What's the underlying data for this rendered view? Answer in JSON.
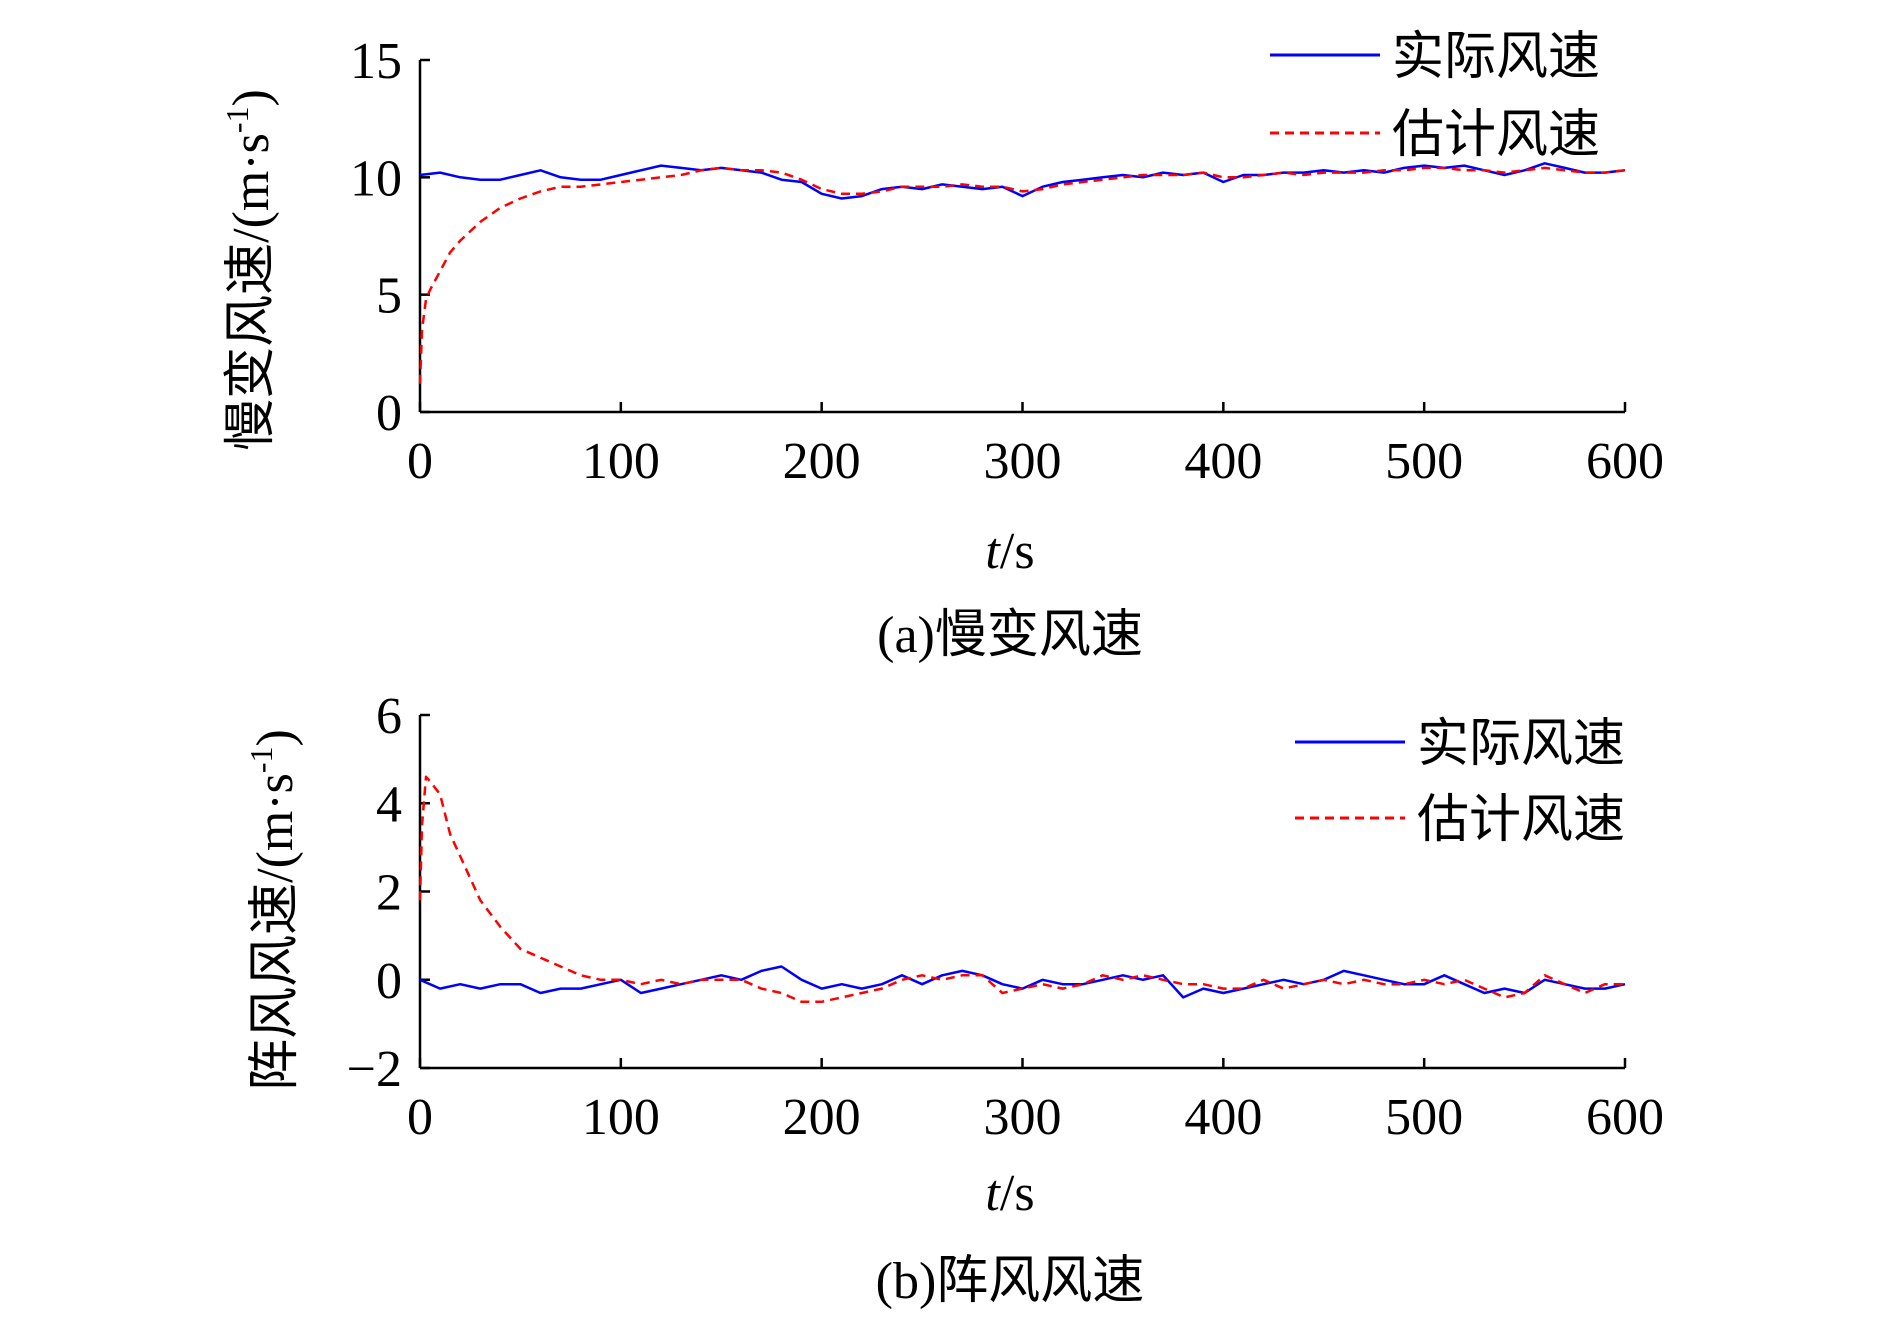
{
  "colors": {
    "actual": "#0000ff",
    "estimated": "#ff0000",
    "axis": "#000000"
  },
  "chart_data": [
    {
      "type": "line",
      "caption": "(a)慢变风速",
      "ylabel_main": "慢变风速/(m·s",
      "ylabel_sup": "-1",
      "ylabel_close": ")",
      "xlabel_italic": "t",
      "xlabel_rest": "/s",
      "xlim": [
        0,
        600
      ],
      "ylim": [
        0,
        15
      ],
      "xticks": [
        0,
        100,
        200,
        300,
        400,
        500,
        600
      ],
      "yticks": [
        0,
        5,
        10,
        15
      ],
      "xtick_labels": [
        "0",
        "100",
        "200",
        "300",
        "400",
        "500",
        "600"
      ],
      "ytick_labels": [
        "0",
        "5",
        "10",
        "15"
      ],
      "legend_position": "top-right",
      "series": [
        {
          "name": "实际风速",
          "style": "solid",
          "x": [
            0,
            10,
            20,
            30,
            40,
            50,
            60,
            70,
            80,
            90,
            100,
            110,
            120,
            130,
            140,
            150,
            160,
            170,
            180,
            190,
            200,
            210,
            220,
            230,
            240,
            250,
            260,
            270,
            280,
            290,
            300,
            310,
            320,
            330,
            340,
            350,
            360,
            370,
            380,
            390,
            400,
            410,
            420,
            430,
            440,
            450,
            460,
            470,
            480,
            490,
            500,
            510,
            520,
            530,
            540,
            550,
            560,
            570,
            580,
            590,
            600
          ],
          "y": [
            10.1,
            10.2,
            10.0,
            9.9,
            9.9,
            10.1,
            10.3,
            10.0,
            9.9,
            9.9,
            10.1,
            10.3,
            10.5,
            10.4,
            10.3,
            10.4,
            10.3,
            10.2,
            9.9,
            9.8,
            9.3,
            9.1,
            9.2,
            9.5,
            9.6,
            9.5,
            9.7,
            9.6,
            9.5,
            9.6,
            9.2,
            9.6,
            9.8,
            9.9,
            10.0,
            10.1,
            10.0,
            10.2,
            10.1,
            10.2,
            9.8,
            10.1,
            10.1,
            10.2,
            10.2,
            10.3,
            10.2,
            10.3,
            10.2,
            10.4,
            10.5,
            10.4,
            10.5,
            10.3,
            10.1,
            10.3,
            10.6,
            10.4,
            10.2,
            10.2,
            10.3
          ]
        },
        {
          "name": "估计风速",
          "style": "dashed",
          "x": [
            0,
            1,
            3,
            5,
            10,
            15,
            20,
            30,
            40,
            50,
            60,
            70,
            80,
            90,
            100,
            110,
            120,
            130,
            140,
            150,
            160,
            170,
            180,
            190,
            200,
            210,
            220,
            230,
            240,
            250,
            260,
            270,
            280,
            290,
            300,
            310,
            320,
            330,
            340,
            350,
            360,
            370,
            380,
            390,
            400,
            410,
            420,
            430,
            440,
            450,
            460,
            470,
            480,
            490,
            500,
            510,
            520,
            530,
            540,
            550,
            560,
            570,
            580,
            590,
            600
          ],
          "y": [
            1.2,
            3.5,
            4.8,
            5.2,
            6.0,
            6.8,
            7.3,
            8.1,
            8.7,
            9.1,
            9.4,
            9.6,
            9.6,
            9.7,
            9.8,
            9.9,
            10.0,
            10.1,
            10.3,
            10.4,
            10.3,
            10.3,
            10.2,
            9.9,
            9.5,
            9.3,
            9.3,
            9.4,
            9.6,
            9.6,
            9.6,
            9.7,
            9.6,
            9.6,
            9.4,
            9.5,
            9.7,
            9.8,
            9.9,
            10.0,
            10.1,
            10.1,
            10.1,
            10.2,
            10.0,
            10.0,
            10.1,
            10.2,
            10.1,
            10.2,
            10.2,
            10.2,
            10.3,
            10.3,
            10.4,
            10.4,
            10.3,
            10.3,
            10.2,
            10.3,
            10.4,
            10.3,
            10.2,
            10.2,
            10.3
          ]
        }
      ]
    },
    {
      "type": "line",
      "caption": "(b)阵风风速",
      "ylabel_main": "阵风风速/(m·s",
      "ylabel_sup": "-1",
      "ylabel_close": ")",
      "xlabel_italic": "t",
      "xlabel_rest": "/s",
      "xlim": [
        0,
        600
      ],
      "ylim": [
        -2,
        6
      ],
      "xticks": [
        0,
        100,
        200,
        300,
        400,
        500,
        600
      ],
      "yticks": [
        -2,
        0,
        2,
        4,
        6
      ],
      "xtick_labels": [
        "0",
        "100",
        "200",
        "300",
        "400",
        "500",
        "600"
      ],
      "ytick_labels": [
        "−2",
        "0",
        "2",
        "4",
        "6"
      ],
      "legend_position": "top-right",
      "series": [
        {
          "name": "实际风速",
          "style": "solid",
          "x": [
            0,
            10,
            20,
            30,
            40,
            50,
            60,
            70,
            80,
            90,
            100,
            110,
            120,
            130,
            140,
            150,
            160,
            170,
            180,
            190,
            200,
            210,
            220,
            230,
            240,
            250,
            260,
            270,
            280,
            290,
            300,
            310,
            320,
            330,
            340,
            350,
            360,
            370,
            380,
            390,
            400,
            410,
            420,
            430,
            440,
            450,
            460,
            470,
            480,
            490,
            500,
            510,
            520,
            530,
            540,
            550,
            560,
            570,
            580,
            590,
            600
          ],
          "y": [
            0.0,
            -0.2,
            -0.1,
            -0.2,
            -0.1,
            -0.1,
            -0.3,
            -0.2,
            -0.2,
            -0.1,
            0.0,
            -0.3,
            -0.2,
            -0.1,
            0.0,
            0.1,
            0.0,
            0.2,
            0.3,
            0.0,
            -0.2,
            -0.1,
            -0.2,
            -0.1,
            0.1,
            -0.1,
            0.1,
            0.2,
            0.1,
            -0.1,
            -0.2,
            0.0,
            -0.1,
            -0.1,
            0.0,
            0.1,
            0.0,
            0.1,
            -0.4,
            -0.2,
            -0.3,
            -0.2,
            -0.1,
            0.0,
            -0.1,
            0.0,
            0.2,
            0.1,
            0.0,
            -0.1,
            -0.1,
            0.1,
            -0.1,
            -0.3,
            -0.2,
            -0.3,
            0.0,
            -0.1,
            -0.2,
            -0.2,
            -0.1
          ]
        },
        {
          "name": "估计风速",
          "style": "dashed",
          "x": [
            0,
            1,
            3,
            5,
            10,
            15,
            20,
            30,
            40,
            50,
            60,
            70,
            80,
            90,
            100,
            110,
            120,
            130,
            140,
            150,
            160,
            170,
            180,
            190,
            200,
            210,
            220,
            230,
            240,
            250,
            260,
            270,
            280,
            290,
            300,
            310,
            320,
            330,
            340,
            350,
            360,
            370,
            380,
            390,
            400,
            410,
            420,
            430,
            440,
            450,
            460,
            470,
            480,
            490,
            500,
            510,
            520,
            530,
            540,
            550,
            560,
            570,
            580,
            590,
            600
          ],
          "y": [
            1.8,
            3.5,
            4.6,
            4.5,
            4.2,
            3.3,
            2.8,
            1.8,
            1.2,
            0.7,
            0.5,
            0.3,
            0.1,
            0.0,
            0.0,
            -0.1,
            0.0,
            -0.1,
            0.0,
            0.0,
            0.0,
            -0.2,
            -0.3,
            -0.5,
            -0.5,
            -0.4,
            -0.3,
            -0.2,
            0.0,
            0.1,
            0.0,
            0.1,
            0.1,
            -0.3,
            -0.2,
            -0.1,
            -0.2,
            -0.1,
            0.1,
            0.0,
            0.1,
            0.0,
            -0.1,
            -0.1,
            -0.2,
            -0.2,
            0.0,
            -0.2,
            -0.1,
            0.0,
            -0.1,
            0.0,
            -0.1,
            -0.1,
            0.0,
            -0.1,
            0.0,
            -0.2,
            -0.4,
            -0.3,
            0.1,
            -0.1,
            -0.3,
            -0.1,
            -0.1
          ]
        }
      ]
    }
  ]
}
